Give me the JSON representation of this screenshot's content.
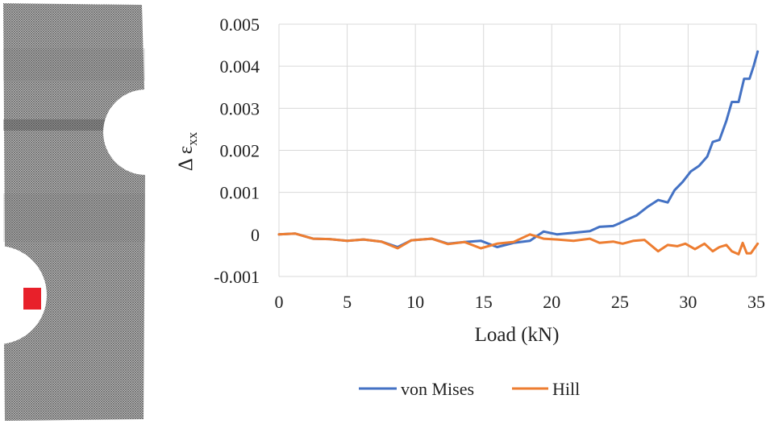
{
  "specimen": {
    "colors": {
      "mesh": "#6b6b6b",
      "mesh_dark": "#3c3c3c",
      "marker": "#e8202a"
    }
  },
  "chart_data": {
    "type": "line",
    "xlabel": "Load (kN)",
    "ylabel": "Δ ε",
    "ylabel_sub": "xx",
    "xlim": [
      0,
      35
    ],
    "ylim": [
      -0.001,
      0.005
    ],
    "xticks": [
      0,
      5,
      10,
      15,
      20,
      25,
      30,
      35
    ],
    "xtick_labels": [
      "0",
      "5",
      "10",
      "15",
      "20",
      "25",
      "30",
      "35"
    ],
    "yticks": [
      -0.001,
      0,
      0.001,
      0.002,
      0.003,
      0.004,
      0.005
    ],
    "ytick_labels": [
      "-0.001",
      "0",
      "0.001",
      "0.002",
      "0.003",
      "0.004",
      "0.005"
    ],
    "grid": true,
    "legend": "bottom",
    "series": [
      {
        "name": "von Mises",
        "color": "#4472c4",
        "x": [
          0,
          1.2,
          2.5,
          3.7,
          5.0,
          6.2,
          7.5,
          8.7,
          9.7,
          11.2,
          12.4,
          13.6,
          14.8,
          16.0,
          17.2,
          18.4,
          19.4,
          20.4,
          21.6,
          22.8,
          23.5,
          24.5,
          25.0,
          25.5,
          26.2,
          27.0,
          27.8,
          28.5,
          29.0,
          29.6,
          30.2,
          30.8,
          31.4,
          31.8,
          32.3,
          32.8,
          33.2,
          33.7,
          34.1,
          34.5,
          34.8,
          35.1
        ],
        "y": [
          0.0,
          2e-05,
          -0.0001,
          -0.00011,
          -0.00015,
          -0.00012,
          -0.00017,
          -0.0003,
          -0.00014,
          -0.0001,
          -0.00022,
          -0.00018,
          -0.00015,
          -0.0003,
          -0.0002,
          -0.00015,
          7e-05,
          0.0,
          4e-05,
          8e-05,
          0.00018,
          0.0002,
          0.00027,
          0.00035,
          0.00045,
          0.00065,
          0.00082,
          0.00076,
          0.00105,
          0.00125,
          0.0015,
          0.00163,
          0.00185,
          0.0022,
          0.00225,
          0.0027,
          0.00315,
          0.00315,
          0.0037,
          0.0037,
          0.004,
          0.00435
        ]
      },
      {
        "name": "Hill",
        "color": "#ed7d31",
        "x": [
          0,
          1.2,
          2.5,
          3.7,
          5.0,
          6.2,
          7.5,
          8.7,
          9.7,
          11.2,
          12.4,
          13.6,
          14.8,
          16.0,
          17.2,
          18.4,
          19.4,
          20.4,
          21.6,
          22.8,
          23.5,
          24.5,
          25.2,
          26.0,
          26.8,
          27.8,
          28.5,
          29.2,
          29.8,
          30.5,
          31.2,
          31.8,
          32.3,
          32.8,
          33.2,
          33.7,
          34.0,
          34.3,
          34.6,
          35.1
        ],
        "y": [
          0.0,
          2e-05,
          -0.0001,
          -0.00011,
          -0.00015,
          -0.00012,
          -0.00017,
          -0.00033,
          -0.00014,
          -0.0001,
          -0.00023,
          -0.00018,
          -0.00033,
          -0.00022,
          -0.00018,
          0.0,
          -0.0001,
          -0.00012,
          -0.00015,
          -0.0001,
          -0.0002,
          -0.00017,
          -0.00022,
          -0.00015,
          -0.00013,
          -0.0004,
          -0.00025,
          -0.00028,
          -0.00022,
          -0.00035,
          -0.00022,
          -0.0004,
          -0.0003,
          -0.00025,
          -0.0004,
          -0.00047,
          -0.0002,
          -0.00045,
          -0.00045,
          -0.00022
        ]
      }
    ]
  }
}
